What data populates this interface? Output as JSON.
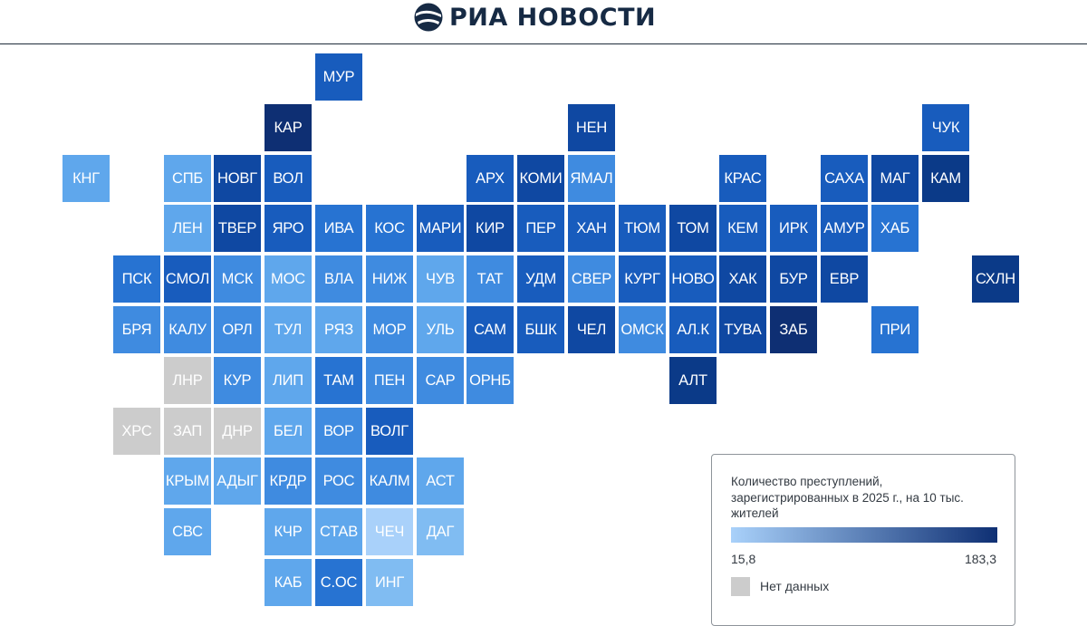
{
  "header": {
    "logo_text": "РИА НОВОСТИ"
  },
  "legend": {
    "title": "Количество преступлений, зарегистрированных в 2025 г., на 10 тыс. жителей",
    "min_label": "15,8",
    "max_label": "183,3",
    "no_data_label": "Нет данных",
    "scale_min": 15.8,
    "scale_max": 183.3,
    "color_low": "#a9d1fa",
    "color_high": "#0e2f73",
    "no_data_color": "#cccccc"
  },
  "colors": {
    "c1": "#a9d1fa",
    "c2": "#80bcf2",
    "c3": "#5fa7ec",
    "c4": "#3f8be0",
    "c5": "#2773d2",
    "c6": "#185cbd",
    "c7": "#0f48a2",
    "c8": "#0b3a88",
    "c9": "#0e2f73",
    "nd": "#cccccc"
  },
  "regions": [
    {
      "name": "МУР",
      "level": "c6"
    },
    {
      "name": "КАР",
      "level": "c9"
    },
    {
      "name": "НЕН",
      "level": "c7"
    },
    {
      "name": "ЧУК",
      "level": "c6"
    },
    {
      "name": "КНГ",
      "level": "c3"
    },
    {
      "name": "СПБ",
      "level": "c3"
    },
    {
      "name": "НОВГ",
      "level": "c7"
    },
    {
      "name": "ВОЛ",
      "level": "c6"
    },
    {
      "name": "АРХ",
      "level": "c6"
    },
    {
      "name": "КОМИ",
      "level": "c7"
    },
    {
      "name": "ЯМАЛ",
      "level": "c4"
    },
    {
      "name": "КРАС",
      "level": "c6"
    },
    {
      "name": "САХА",
      "level": "c6"
    },
    {
      "name": "МАГ",
      "level": "c7"
    },
    {
      "name": "КАМ",
      "level": "c8"
    },
    {
      "name": "ЛЕН",
      "level": "c3"
    },
    {
      "name": "ТВЕР",
      "level": "c7"
    },
    {
      "name": "ЯРО",
      "level": "c6"
    },
    {
      "name": "ИВА",
      "level": "c5"
    },
    {
      "name": "КОС",
      "level": "c5"
    },
    {
      "name": "МАРИ",
      "level": "c6"
    },
    {
      "name": "КИР",
      "level": "c7"
    },
    {
      "name": "ПЕР",
      "level": "c6"
    },
    {
      "name": "ХАН",
      "level": "c6"
    },
    {
      "name": "ТЮМ",
      "level": "c6"
    },
    {
      "name": "ТОМ",
      "level": "c7"
    },
    {
      "name": "КЕМ",
      "level": "c6"
    },
    {
      "name": "ИРК",
      "level": "c6"
    },
    {
      "name": "АМУР",
      "level": "c6"
    },
    {
      "name": "ХАБ",
      "level": "c5"
    },
    {
      "name": "ПСК",
      "level": "c5"
    },
    {
      "name": "СМОЛ",
      "level": "c6"
    },
    {
      "name": "МСК",
      "level": "c4"
    },
    {
      "name": "МОС",
      "level": "c3"
    },
    {
      "name": "ВЛА",
      "level": "c4"
    },
    {
      "name": "НИЖ",
      "level": "c4"
    },
    {
      "name": "ЧУВ",
      "level": "c3"
    },
    {
      "name": "ТАТ",
      "level": "c4"
    },
    {
      "name": "УДМ",
      "level": "c6"
    },
    {
      "name": "СВЕР",
      "level": "c4"
    },
    {
      "name": "КУРГ",
      "level": "c6"
    },
    {
      "name": "НОВО",
      "level": "c6"
    },
    {
      "name": "ХАК",
      "level": "c7"
    },
    {
      "name": "БУР",
      "level": "c7"
    },
    {
      "name": "ЕВР",
      "level": "c7"
    },
    {
      "name": "СХЛН",
      "level": "c8"
    },
    {
      "name": "БРЯ",
      "level": "c4"
    },
    {
      "name": "КАЛУ",
      "level": "c4"
    },
    {
      "name": "ОРЛ",
      "level": "c4"
    },
    {
      "name": "ТУЛ",
      "level": "c3"
    },
    {
      "name": "РЯЗ",
      "level": "c3"
    },
    {
      "name": "МОР",
      "level": "c4"
    },
    {
      "name": "УЛЬ",
      "level": "c3"
    },
    {
      "name": "САМ",
      "level": "c6"
    },
    {
      "name": "БШК",
      "level": "c6"
    },
    {
      "name": "ЧЕЛ",
      "level": "c7"
    },
    {
      "name": "ОМСК",
      "level": "c4"
    },
    {
      "name": "АЛ.К",
      "level": "c6"
    },
    {
      "name": "ТУВА",
      "level": "c7"
    },
    {
      "name": "ЗАБ",
      "level": "c9"
    },
    {
      "name": "ПРИ",
      "level": "c5"
    },
    {
      "name": "ЛНР",
      "level": "nd"
    },
    {
      "name": "КУР",
      "level": "c4"
    },
    {
      "name": "ЛИП",
      "level": "c3"
    },
    {
      "name": "ТАМ",
      "level": "c5"
    },
    {
      "name": "ПЕН",
      "level": "c4"
    },
    {
      "name": "САР",
      "level": "c4"
    },
    {
      "name": "ОРНБ",
      "level": "c4"
    },
    {
      "name": "АЛТ",
      "level": "c8"
    },
    {
      "name": "ХРС",
      "level": "nd"
    },
    {
      "name": "ЗАП",
      "level": "nd"
    },
    {
      "name": "ДНР",
      "level": "nd"
    },
    {
      "name": "БЕЛ",
      "level": "c3"
    },
    {
      "name": "ВОР",
      "level": "c4"
    },
    {
      "name": "ВОЛГ",
      "level": "c6"
    },
    {
      "name": "КРЫМ",
      "level": "c3"
    },
    {
      "name": "АДЫГ",
      "level": "c3"
    },
    {
      "name": "КРДР",
      "level": "c4"
    },
    {
      "name": "РОС",
      "level": "c4"
    },
    {
      "name": "КАЛМ",
      "level": "c4"
    },
    {
      "name": "АСТ",
      "level": "c3"
    },
    {
      "name": "СВС",
      "level": "c3"
    },
    {
      "name": "КЧР",
      "level": "c3"
    },
    {
      "name": "СТАВ",
      "level": "c3"
    },
    {
      "name": "ЧЕЧ",
      "level": "c1"
    },
    {
      "name": "ДАГ",
      "level": "c2"
    },
    {
      "name": "КАБ",
      "level": "c3"
    },
    {
      "name": "С.ОС",
      "level": "c5"
    },
    {
      "name": "ИНГ",
      "level": "c2"
    }
  ]
}
